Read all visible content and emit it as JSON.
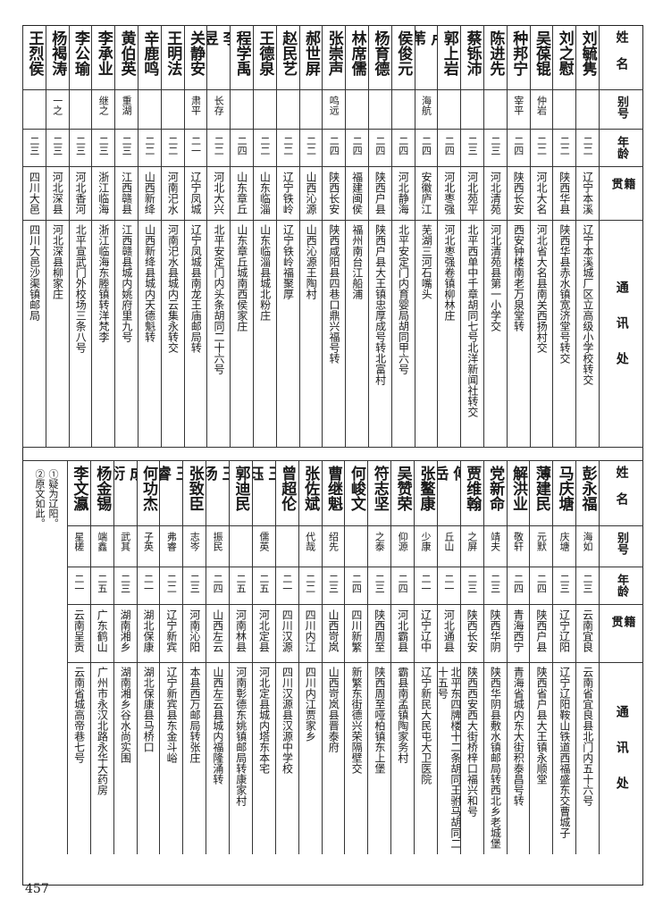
{
  "headers": {
    "name": "姓名",
    "alias": "别号",
    "age": "年龄",
    "native": "籍贯",
    "address": "通讯处"
  },
  "upper_table": [
    {
      "name": "刘毓隽",
      "alias": "",
      "age": "二二",
      "native": "辽宁本溪",
      "address": "辽宁本溪城厂区立高级小学校转交"
    },
    {
      "name": "刘之慰",
      "alias": "",
      "age": "二二",
      "native": "陕西华县",
      "address": "陕西华县赤水镇宽济堂号转交"
    },
    {
      "name": "吴葆锟",
      "alias": "仲岩",
      "age": "二二",
      "native": "河北大名",
      "address": "河北省大名县南关西扬村交"
    },
    {
      "name": "种邦宁",
      "alias": "宰平",
      "age": "二四",
      "native": "陕西长安",
      "address": "西安钟楼南老万泉堂转"
    },
    {
      "name": "陈进先",
      "alias": "",
      "age": "二三",
      "native": "河北清苑",
      "address": "河北清苑县第一小学交"
    },
    {
      "name": "蔡铄沛",
      "alias": "",
      "age": "二三",
      "native": "河北苑平",
      "address": "北平西单中千章胡同七号北洋新闻社转交"
    },
    {
      "name": "郭上岩",
      "alias": "",
      "age": "二四",
      "native": "河北枣强",
      "address": "河北枣强卷镇柳林庄"
    },
    {
      "name": "卢苇",
      "alias": "海航",
      "age": "二四",
      "native": "安徽庐江",
      "address": "芜湖三河石嘴头"
    },
    {
      "name": "侯俊元",
      "alias": "",
      "age": "二四",
      "native": "河北静海",
      "address": "北平安定门内育婴局胡同甲六号"
    },
    {
      "name": "杨育德",
      "alias": "",
      "age": "二四",
      "native": "陕西户县",
      "address": "陕西户县大王镇忠厚成号转北富村"
    },
    {
      "name": "林席儒",
      "alias": "",
      "age": "二四",
      "native": "福建闽侯",
      "address": "福州南台江船浦"
    },
    {
      "name": "张崇声",
      "alias": "鸣远",
      "age": "二四",
      "native": "陕西长安",
      "address": "陕西咸阳县四巷口鼎兴福号转"
    },
    {
      "name": "郝世屏",
      "alias": "",
      "age": "二二",
      "native": "山西沁源",
      "address": "山西沁源王陶村"
    },
    {
      "name": "赵民艺",
      "alias": "",
      "age": "二二",
      "native": "辽宁铁岭",
      "address": "辽宁铁岭福聚厚"
    },
    {
      "name": "王德泉",
      "alias": "",
      "age": "二二",
      "native": "山东临淄",
      "address": "山东临淄县城北粉庄"
    },
    {
      "name": "程学禹",
      "alias": "",
      "age": "二四",
      "native": "山东章丘",
      "address": "山东章丘城南西侯家庄"
    },
    {
      "name": "李昱",
      "alias": "长存",
      "age": "二二",
      "native": "河北大兴",
      "address": "北平安定门内头条胡同二十六号"
    },
    {
      "name": "关静安",
      "alias": "肃平",
      "age": "二一",
      "native": "辽宁凤城",
      "address": "辽宁凤城县南龙王庙邮局转"
    },
    {
      "name": "王明法",
      "alias": "",
      "age": "二二",
      "native": "河南汜水",
      "address": "河南汜水县城内云集永转交"
    },
    {
      "name": "辛鹿鸣",
      "alias": "",
      "age": "二二",
      "native": "山西新绛",
      "address": "山西新绛县城内天德魁转"
    },
    {
      "name": "黄伯英",
      "alias": "重湖",
      "age": "二三",
      "native": "江西赣县",
      "address": "江西赣县城内姚府里九号"
    },
    {
      "name": "李承业",
      "alias": "继之",
      "age": "二三",
      "native": "浙江临海",
      "address": "浙江临海东塍镇转洋梵李"
    },
    {
      "name": "李公瑜",
      "alias": "",
      "age": "二三",
      "native": "河北香河",
      "address": "北平宣武门外校场三条八号"
    },
    {
      "name": "杨褐涛",
      "alias": "一之",
      "age": "二三",
      "native": "河北深县",
      "address": "河北深县柳家庄"
    },
    {
      "name": "王烈侯",
      "alias": "",
      "age": "二三",
      "native": "四川大邑",
      "address": "四川大邑沙渠镇邮局"
    }
  ],
  "lower_table": [
    {
      "name": "彭永福",
      "alias": "海如",
      "age": "二三",
      "native": "云南宜良",
      "address": "云南省宜良县北门内五十六号"
    },
    {
      "name": "马庆塘",
      "alias": "庆塘",
      "age": "二三",
      "native": "辽宁辽阳",
      "address": "辽宁辽阳鞍山铁道西福盛东交曹城子"
    },
    {
      "name": "薄建民",
      "alias": "元默",
      "age": "二四",
      "native": "陕西户县",
      "address": "陕西省户县大王镇永顺堂"
    },
    {
      "name": "解洪业",
      "alias": "敬轩",
      "age": "二四",
      "native": "青海西宁",
      "address": "青海省城内东大街积泰昌号转"
    },
    {
      "name": "党新命",
      "alias": "靖夫",
      "age": "二三",
      "native": "陕西华阴",
      "address": "陕西华阴县敷水镇邮局转西北乡老城堡"
    },
    {
      "name": "贾维翰",
      "alias": "之屏",
      "age": "二三",
      "native": "陕西长安",
      "address": "陕西西安西大街桥梓口福兴和号"
    },
    {
      "name": "傅岳",
      "alias": "丘山",
      "age": "二一",
      "native": "河北通县",
      "address": "北平东四牌楼十二条胡同王驸马胡同二十五号"
    },
    {
      "name": "张鳌康",
      "alias": "少康",
      "age": "二一",
      "native": "辽宁辽中",
      "address": "辽宁新民大民屯大卫医院"
    },
    {
      "name": "吴赞荣",
      "alias": "仰源",
      "age": "二四",
      "native": "河北霸县",
      "address": "霸县南孟镇陶家务村"
    },
    {
      "name": "符志坚",
      "alias": "之泰",
      "age": "二三",
      "native": "陕西周至",
      "address": "陕西周至哑柏镇东上堡"
    },
    {
      "name": "何峻文",
      "alias": "",
      "age": "二四",
      "native": "四川新繁",
      "address": "新繁东街德兴荣隔壁交"
    },
    {
      "name": "曹继魁",
      "alias": "绍先",
      "age": "二三",
      "native": "山西岢岚",
      "address": "山西岢岚县晋泰府"
    },
    {
      "name": "张佐斌",
      "alias": "代哉",
      "age": "二二",
      "native": "四川内江",
      "address": "四川内江贾家乡"
    },
    {
      "name": "曾超伦",
      "alias": "",
      "age": "二一",
      "native": "四川汉源",
      "address": "四川汉源县汉源中学校"
    },
    {
      "name": "王珏",
      "alias": "儒英",
      "age": "二五",
      "native": "河北定县",
      "address": "河北定县城内塔东本宅"
    },
    {
      "name": "郭迪民",
      "alias": "",
      "age": "二五",
      "native": "河南林县",
      "address": "河南彰德东姚镇邮局转康家村"
    },
    {
      "name": "王汤",
      "alias": "振民",
      "age": "二四",
      "native": "山西左云",
      "address": "山西左云县城内福隆涌转"
    },
    {
      "name": "张致臣",
      "alias": "志岑",
      "age": "二三",
      "native": "河南沁阳",
      "address": "本县西万邮局转张庄"
    },
    {
      "name": "王睿",
      "alias": "弗睿",
      "age": "二二",
      "native": "辽宁新宾",
      "address": "辽宁新宾县东金斗峪"
    },
    {
      "name": "何功杰",
      "alias": "子英",
      "age": "二一",
      "native": "湖北保康",
      "address": "湖北保康县马桥口"
    },
    {
      "name": "成衍",
      "alias": "武其",
      "age": "二三",
      "native": "湖南湘乡",
      "address": "湖南湘乡谷水尚实围"
    },
    {
      "name": "杨金锡",
      "alias": "端鑫",
      "age": "二五",
      "native": "广东鹤山",
      "address": "广州市永汉北路永华大药房"
    },
    {
      "name": "李文瀛",
      "alias": "星槎",
      "age": "二一",
      "native": "云南呈贡",
      "address": "云南省城高帝巷七号"
    }
  ],
  "footnotes": [
    "①疑为辽阳。",
    "②原文如此。"
  ],
  "page_number": "457"
}
